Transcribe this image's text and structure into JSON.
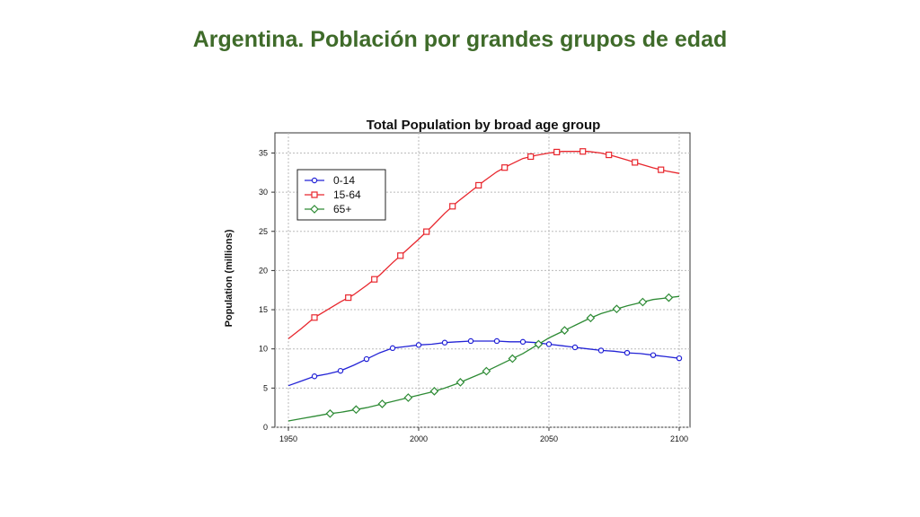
{
  "slide": {
    "title": "Argentina. Población por grandes grupos de edad"
  },
  "chart_data": {
    "type": "line",
    "title": "Total Population by broad age group",
    "xlabel": "",
    "ylabel": "Population (millions)",
    "xlim": [
      1950,
      2100
    ],
    "ylim": [
      0,
      37
    ],
    "x_ticks": [
      1950,
      2000,
      2050,
      2100
    ],
    "y_ticks": [
      0,
      5,
      10,
      15,
      20,
      25,
      30,
      35
    ],
    "grid": true,
    "legend_position": "top-left",
    "series": [
      {
        "name": "0-14",
        "color": "#2323d6",
        "marker": "circle",
        "points": [
          [
            1950,
            5.3
          ],
          [
            1955,
            5.9
          ],
          [
            1960,
            6.5
          ],
          [
            1965,
            6.8
          ],
          [
            1970,
            7.2
          ],
          [
            1975,
            7.9
          ],
          [
            1980,
            8.7
          ],
          [
            1985,
            9.5
          ],
          [
            1990,
            10.1
          ],
          [
            1995,
            10.3
          ],
          [
            2000,
            10.5
          ],
          [
            2005,
            10.6
          ],
          [
            2010,
            10.8
          ],
          [
            2015,
            10.9
          ],
          [
            2020,
            11.0
          ],
          [
            2025,
            11.0
          ],
          [
            2030,
            11.0
          ],
          [
            2035,
            10.9
          ],
          [
            2040,
            10.9
          ],
          [
            2045,
            10.8
          ],
          [
            2050,
            10.6
          ],
          [
            2055,
            10.4
          ],
          [
            2060,
            10.2
          ],
          [
            2065,
            10.0
          ],
          [
            2070,
            9.8
          ],
          [
            2075,
            9.7
          ],
          [
            2080,
            9.5
          ],
          [
            2085,
            9.4
          ],
          [
            2090,
            9.2
          ],
          [
            2095,
            9.0
          ],
          [
            2100,
            8.8
          ]
        ],
        "marker_x": [
          1960,
          1970,
          1980,
          1990,
          2000,
          2010,
          2020,
          2030,
          2040,
          2050,
          2060,
          2070,
          2080,
          2090,
          2100
        ]
      },
      {
        "name": "15-64",
        "color": "#e8262d",
        "marker": "square",
        "points": [
          [
            1950,
            11.3
          ],
          [
            1955,
            12.6
          ],
          [
            1960,
            14.0
          ],
          [
            1965,
            15.0
          ],
          [
            1970,
            16.0
          ],
          [
            1975,
            16.9
          ],
          [
            1980,
            18.1
          ],
          [
            1985,
            19.4
          ],
          [
            1990,
            21.0
          ],
          [
            1995,
            22.5
          ],
          [
            2000,
            24.0
          ],
          [
            2005,
            25.6
          ],
          [
            2010,
            27.3
          ],
          [
            2015,
            28.8
          ],
          [
            2020,
            30.1
          ],
          [
            2025,
            31.4
          ],
          [
            2030,
            32.6
          ],
          [
            2035,
            33.5
          ],
          [
            2040,
            34.3
          ],
          [
            2045,
            34.7
          ],
          [
            2050,
            35.0
          ],
          [
            2055,
            35.2
          ],
          [
            2060,
            35.2
          ],
          [
            2065,
            35.2
          ],
          [
            2070,
            35.0
          ],
          [
            2075,
            34.6
          ],
          [
            2080,
            34.1
          ],
          [
            2085,
            33.6
          ],
          [
            2090,
            33.1
          ],
          [
            2095,
            32.7
          ],
          [
            2100,
            32.4
          ]
        ],
        "marker_x": [
          1960,
          1973,
          1983,
          1993,
          2003,
          2013,
          2023,
          2033,
          2043,
          2053,
          2063,
          2073,
          2083,
          2093
        ]
      },
      {
        "name": "65+",
        "color": "#2e8b35",
        "marker": "diamond",
        "points": [
          [
            1950,
            0.8
          ],
          [
            1955,
            1.1
          ],
          [
            1960,
            1.4
          ],
          [
            1965,
            1.7
          ],
          [
            1970,
            1.9
          ],
          [
            1975,
            2.2
          ],
          [
            1980,
            2.5
          ],
          [
            1985,
            2.9
          ],
          [
            1990,
            3.3
          ],
          [
            1995,
            3.7
          ],
          [
            2000,
            4.1
          ],
          [
            2005,
            4.5
          ],
          [
            2010,
            5.0
          ],
          [
            2015,
            5.6
          ],
          [
            2020,
            6.3
          ],
          [
            2025,
            7.0
          ],
          [
            2030,
            7.8
          ],
          [
            2035,
            8.6
          ],
          [
            2040,
            9.4
          ],
          [
            2045,
            10.4
          ],
          [
            2050,
            11.4
          ],
          [
            2055,
            12.2
          ],
          [
            2060,
            13.0
          ],
          [
            2065,
            13.8
          ],
          [
            2070,
            14.5
          ],
          [
            2075,
            15.0
          ],
          [
            2080,
            15.5
          ],
          [
            2085,
            15.9
          ],
          [
            2090,
            16.3
          ],
          [
            2095,
            16.5
          ],
          [
            2100,
            16.7
          ]
        ],
        "marker_x": [
          1966,
          1976,
          1986,
          1996,
          2006,
          2016,
          2026,
          2036,
          2046,
          2056,
          2066,
          2076,
          2086,
          2096
        ]
      }
    ]
  }
}
